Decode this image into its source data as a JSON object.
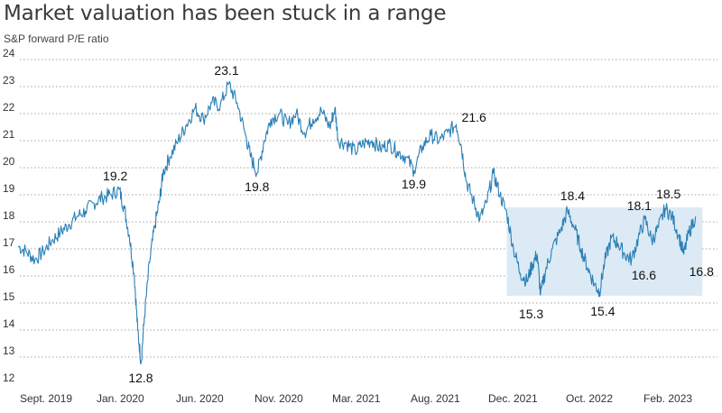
{
  "title": "Market valuation has been stuck in a range",
  "subtitle": "S&P forward P/E ratio",
  "colors": {
    "line": "#2a7fb5",
    "range_fill": "#dceaf5",
    "grid": "#888888"
  },
  "chart_data": {
    "type": "line",
    "title": "Market valuation has been stuck in a range",
    "ylabel": "S&P forward P/E ratio",
    "ylim": [
      12,
      24
    ],
    "yticks": [
      12,
      13,
      14,
      15,
      16,
      17,
      18,
      19,
      20,
      21,
      22,
      23,
      24
    ],
    "grid": "horizontal-dotted",
    "xticks": [
      "Sept. 2019",
      "Jan. 2020",
      "Jun. 2020",
      "Nov. 2020",
      "Mar. 2021",
      "Aug. 2021",
      "Dec. 2021",
      "Oct. 2022",
      "Feb. 2023"
    ],
    "series": [
      {
        "points": [
          [
            0,
            17.1
          ],
          [
            0.5,
            16.9
          ],
          [
            1.0,
            16.6
          ],
          [
            1.5,
            16.9
          ],
          [
            2.0,
            17.3
          ],
          [
            2.5,
            17.6
          ],
          [
            3.0,
            17.9
          ],
          [
            3.5,
            18.2
          ],
          [
            4.0,
            18.4
          ],
          [
            4.5,
            18.7
          ],
          [
            5.0,
            18.9
          ],
          [
            5.5,
            19.0
          ],
          [
            6.0,
            19.2
          ],
          [
            6.3,
            18.5
          ],
          [
            6.6,
            17.5
          ],
          [
            6.9,
            16.0
          ],
          [
            7.1,
            14.0
          ],
          [
            7.3,
            12.8
          ],
          [
            7.5,
            14.5
          ],
          [
            7.8,
            16.5
          ],
          [
            8.1,
            17.8
          ],
          [
            8.4,
            18.8
          ],
          [
            8.6,
            19.8
          ],
          [
            9.0,
            20.4
          ],
          [
            9.5,
            21.0
          ],
          [
            10.0,
            21.6
          ],
          [
            10.5,
            22.2
          ],
          [
            11.0,
            21.8
          ],
          [
            11.5,
            22.4
          ],
          [
            12.0,
            22.3
          ],
          [
            12.5,
            23.1
          ],
          [
            13.0,
            22.4
          ],
          [
            13.5,
            21.2
          ],
          [
            13.8,
            20.4
          ],
          [
            14.2,
            19.8
          ],
          [
            14.6,
            21.0
          ],
          [
            15.0,
            21.8
          ],
          [
            15.5,
            22.0
          ],
          [
            16.0,
            21.6
          ],
          [
            16.5,
            22.0
          ],
          [
            17.0,
            21.3
          ],
          [
            17.5,
            21.8
          ],
          [
            18.0,
            22.1
          ],
          [
            18.5,
            21.5
          ],
          [
            18.8,
            22.2
          ],
          [
            19.0,
            21.0
          ],
          [
            19.5,
            20.9
          ],
          [
            20.0,
            20.6
          ],
          [
            20.5,
            20.9
          ],
          [
            21.0,
            21.0
          ],
          [
            21.5,
            20.7
          ],
          [
            22.0,
            20.9
          ],
          [
            22.5,
            20.6
          ],
          [
            23.0,
            20.4
          ],
          [
            23.5,
            19.9
          ],
          [
            24.0,
            20.8
          ],
          [
            24.5,
            21.2
          ],
          [
            25.0,
            21.0
          ],
          [
            25.5,
            21.3
          ],
          [
            26.0,
            21.6
          ],
          [
            26.3,
            20.8
          ],
          [
            26.6,
            19.5
          ],
          [
            27.0,
            18.8
          ],
          [
            27.4,
            18.1
          ],
          [
            27.8,
            18.7
          ],
          [
            28.2,
            19.8
          ],
          [
            28.6,
            19.0
          ],
          [
            29.0,
            18.3
          ],
          [
            29.4,
            17.0
          ],
          [
            29.8,
            16.1
          ],
          [
            30.2,
            15.8
          ],
          [
            30.5,
            16.4
          ],
          [
            30.8,
            16.8
          ],
          [
            31.0,
            15.3
          ],
          [
            31.3,
            16.2
          ],
          [
            31.7,
            17.0
          ],
          [
            32.2,
            17.7
          ],
          [
            32.6,
            18.4
          ],
          [
            33.0,
            17.8
          ],
          [
            33.4,
            17.0
          ],
          [
            33.8,
            16.3
          ],
          [
            34.2,
            15.7
          ],
          [
            34.5,
            15.4
          ],
          [
            34.8,
            16.5
          ],
          [
            35.2,
            17.4
          ],
          [
            35.6,
            17.2
          ],
          [
            36.0,
            16.8
          ],
          [
            36.4,
            16.6
          ],
          [
            36.8,
            17.4
          ],
          [
            37.2,
            18.1
          ],
          [
            37.6,
            17.3
          ],
          [
            38.0,
            17.8
          ],
          [
            38.4,
            18.5
          ],
          [
            38.8,
            18.2
          ],
          [
            39.2,
            17.5
          ],
          [
            39.5,
            16.8
          ],
          [
            39.8,
            17.6
          ],
          [
            40.2,
            18.2
          ]
        ]
      }
    ],
    "range_box": {
      "x": [
        29.0,
        40.6
      ],
      "y": [
        15.3,
        18.5
      ]
    },
    "annotations": [
      {
        "label": "19.2",
        "x": 6.0,
        "y": 19.2
      },
      {
        "label": "12.8",
        "x": 7.3,
        "y": 12.8
      },
      {
        "label": "23.1",
        "x": 12.5,
        "y": 23.1
      },
      {
        "label": "19.8",
        "x": 14.2,
        "y": 19.8
      },
      {
        "label": "19.9",
        "x": 23.5,
        "y": 19.9
      },
      {
        "label": "21.6",
        "x": 26.0,
        "y": 21.6
      },
      {
        "label": "15.3",
        "x": 31.0,
        "y": 15.3
      },
      {
        "label": "18.4",
        "x": 32.6,
        "y": 18.4
      },
      {
        "label": "15.4",
        "x": 34.5,
        "y": 15.4
      },
      {
        "label": "18.1",
        "x": 37.2,
        "y": 18.1
      },
      {
        "label": "16.6",
        "x": 36.4,
        "y": 16.6
      },
      {
        "label": "18.5",
        "x": 38.4,
        "y": 18.5
      },
      {
        "label": "16.8",
        "x": 39.5,
        "y": 16.8
      }
    ]
  }
}
